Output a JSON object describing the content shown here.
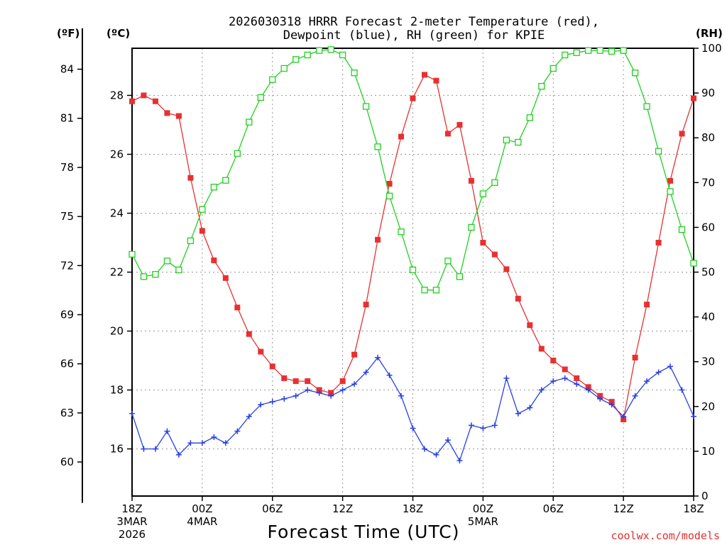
{
  "chart_data": {
    "type": "line",
    "title_lines": [
      "2026030318 HRRR Forecast 2-meter Temperature (red),",
      "Dewpoint (blue), RH (green) for KPIE"
    ],
    "xlabel": "Forecast Time (UTC)",
    "credit": "coolwx.com/models",
    "units": {
      "f": "(ºF)",
      "c": "(ºC)",
      "rh": "(RH)"
    },
    "x_ticks": [
      {
        "hour": 0,
        "lines": [
          "18Z",
          "3MAR",
          "2026"
        ]
      },
      {
        "hour": 6,
        "lines": [
          "00Z",
          "4MAR"
        ]
      },
      {
        "hour": 12,
        "lines": [
          "06Z"
        ]
      },
      {
        "hour": 18,
        "lines": [
          "12Z"
        ]
      },
      {
        "hour": 24,
        "lines": [
          "18Z"
        ]
      },
      {
        "hour": 30,
        "lines": [
          "00Z",
          "5MAR"
        ]
      },
      {
        "hour": 36,
        "lines": [
          "06Z"
        ]
      },
      {
        "hour": 42,
        "lines": [
          "12Z"
        ]
      },
      {
        "hour": 48,
        "lines": [
          "18Z"
        ]
      }
    ],
    "c_ticks": [
      "16",
      "18",
      "20",
      "22",
      "24",
      "26",
      "28"
    ],
    "f_ticks": [
      "60",
      "63",
      "66",
      "69",
      "72",
      "75",
      "78",
      "81",
      "84"
    ],
    "rh_ticks": [
      "0",
      "10",
      "20",
      "30",
      "40",
      "50",
      "60",
      "70",
      "80",
      "90",
      "100"
    ],
    "ylim_c": [
      14.4,
      29.6
    ],
    "ylim_rh": [
      0,
      100
    ],
    "x_range_hours": [
      0,
      48
    ],
    "series": [
      {
        "name": "Temperature",
        "unit": "°C",
        "color": "#e83030",
        "marker": "filled-square",
        "values": [
          27.8,
          28.0,
          27.8,
          27.4,
          27.3,
          25.2,
          23.4,
          22.4,
          21.8,
          20.8,
          19.9,
          19.3,
          18.8,
          18.4,
          18.3,
          18.3,
          18.0,
          17.9,
          18.3,
          19.2,
          20.9,
          23.1,
          25.0,
          26.6,
          27.9,
          28.7,
          28.5,
          26.7,
          27.0,
          25.1,
          23.0,
          22.6,
          22.1,
          21.1,
          20.2,
          19.4,
          19.0,
          18.7,
          18.4,
          18.1,
          17.8,
          17.6,
          17.0,
          19.1,
          20.9,
          23.0,
          25.1,
          26.7,
          27.9
        ]
      },
      {
        "name": "Dewpoint",
        "unit": "°C",
        "color": "#2840e0",
        "marker": "plus",
        "values": [
          17.2,
          16.0,
          16.0,
          16.6,
          15.8,
          16.2,
          16.2,
          16.4,
          16.2,
          16.6,
          17.1,
          17.5,
          17.6,
          17.7,
          17.8,
          18.0,
          17.9,
          17.8,
          18.0,
          18.2,
          18.6,
          19.1,
          18.5,
          17.8,
          16.7,
          16.0,
          15.8,
          16.3,
          15.6,
          16.8,
          16.7,
          16.8,
          18.4,
          17.2,
          17.4,
          18.0,
          18.3,
          18.4,
          18.2,
          18.0,
          17.7,
          17.5,
          17.1,
          17.8,
          18.3,
          18.6,
          18.8,
          18.0,
          17.1
        ]
      },
      {
        "name": "RH",
        "unit": "%",
        "color": "#20d020",
        "marker": "open-square",
        "values": [
          54,
          49,
          49.5,
          52.5,
          50.5,
          57,
          64,
          69,
          70.5,
          76.5,
          83.5,
          89,
          93,
          95.5,
          97.5,
          98.5,
          99.5,
          99.7,
          98.5,
          94.5,
          87,
          78,
          67,
          59,
          50.5,
          46,
          46,
          52.5,
          49,
          60,
          67.5,
          70,
          79.5,
          79,
          84.5,
          91.5,
          95.5,
          98.5,
          99,
          99.5,
          99.5,
          99.3,
          99.5,
          94.5,
          87,
          77,
          68,
          59.5,
          52
        ]
      }
    ]
  }
}
